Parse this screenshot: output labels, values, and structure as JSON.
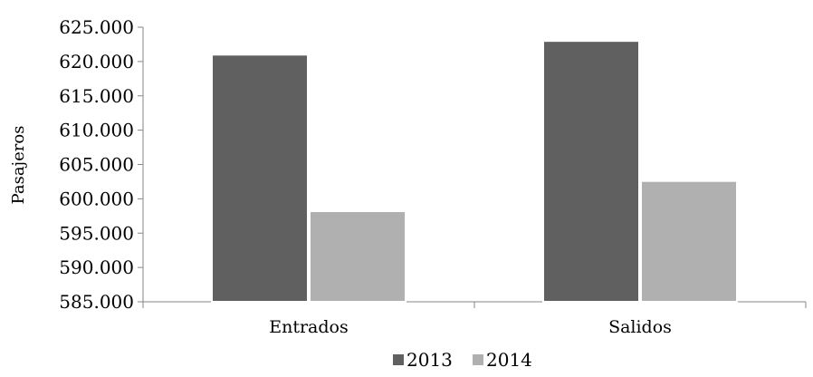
{
  "chart_data": {
    "type": "bar",
    "title": "",
    "xlabel": "",
    "ylabel": "Pasajeros",
    "categories": [
      "Entrados",
      "Salidos"
    ],
    "series": [
      {
        "name": "2013",
        "color": "#606060",
        "values": [
          621000,
          623000
        ]
      },
      {
        "name": "2014",
        "color": "#b0b0b0",
        "values": [
          598200,
          602600
        ]
      }
    ],
    "ylim": [
      585000,
      625000
    ],
    "yticks": [
      {
        "value": 585000,
        "label": "585.000"
      },
      {
        "value": 590000,
        "label": "590.000"
      },
      {
        "value": 595000,
        "label": "595.000"
      },
      {
        "value": 600000,
        "label": "600.000"
      },
      {
        "value": 605000,
        "label": "605.000"
      },
      {
        "value": 610000,
        "label": "610.000"
      },
      {
        "value": 615000,
        "label": "615.000"
      },
      {
        "value": 620000,
        "label": "620.000"
      },
      {
        "value": 625000,
        "label": "625.000"
      }
    ],
    "grid": false,
    "legend_position": "bottom"
  }
}
